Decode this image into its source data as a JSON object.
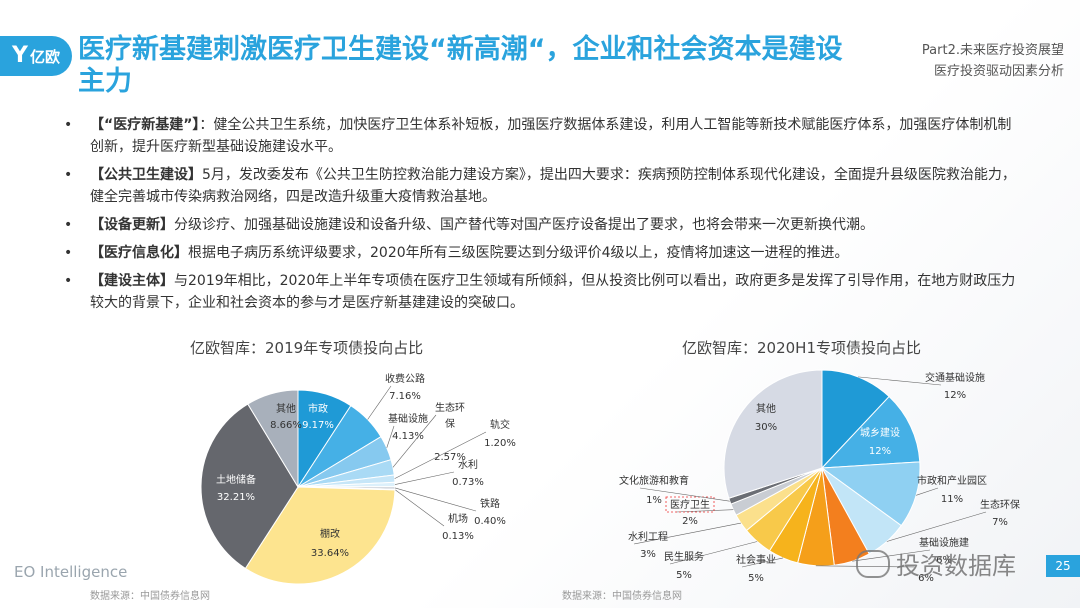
{
  "logo": {
    "text": "亿欧"
  },
  "title": "医疗新基建刺激医疗卫生建设“新高潮“，企业和社会资本是建设主力",
  "part": {
    "line1": "Part2.未来医疗投资展望",
    "line2": "医疗投资驱动因素分析"
  },
  "bullets": [
    {
      "head": "【“医疗新基建”】",
      "text": "：健全公共卫生系统，加快医疗卫生体系补短板，加强医疗数据体系建设，利用人工智能等新技术赋能医疗体系，加强医疗体制机制创新，提升医疗新型基础设施建设水平。"
    },
    {
      "head": "【公共卫生建设】",
      "text": "5月，发改委发布《公共卫生防控救治能力建设方案》，提出四大要求：疾病预防控制体系现代化建设，全面提升县级医院救治能力，健全完善城市传染病救治网络，四是改造升级重大疫情救治基地。"
    },
    {
      "head": "【设备更新】",
      "text": "分级诊疗、加强基础设施建设和设备升级、国产替代等对国产医疗设备提出了要求，也将会带来一次更新换代潮。"
    },
    {
      "head": "【医疗信息化】",
      "text": "根据电子病历系统评级要求，2020年所有三级医院要达到分级评价4级以上，疫情将加速这一进程的推进。"
    },
    {
      "head": "【建设主体】",
      "text": "与2019年相比，2020年上半年专项债在医疗卫生领域有所倾斜，但从投资比例可以看出，政府更多是发挥了引导作用，在地方财政压力较大的背景下，企业和社会资本的参与才是医疗新基建建设的突破口。"
    }
  ],
  "chart_data": [
    {
      "type": "pie",
      "title": "亿欧智库：2019年专项债投向占比",
      "slices": [
        {
          "label": "市政",
          "value": 9.17,
          "display": "9.17%",
          "color": "#1f9ad6"
        },
        {
          "label": "收费公路",
          "value": 7.16,
          "display": "7.16%",
          "color": "#45b0e6"
        },
        {
          "label": "基础设施",
          "value": 4.13,
          "display": "4.13%",
          "color": "#86c9ef"
        },
        {
          "label": "生态环保",
          "value": 2.57,
          "display": "2.57%",
          "color": "#a9daf5"
        },
        {
          "label": "轨交",
          "value": 1.2,
          "display": "1.20%",
          "color": "#c6e6f8"
        },
        {
          "label": "水利",
          "value": 0.73,
          "display": "0.73%",
          "color": "#dcf0fb"
        },
        {
          "label": "铁路",
          "value": 0.4,
          "display": "0.40%",
          "color": "#c8ced6"
        },
        {
          "label": "机场",
          "value": 0.13,
          "display": "0.13%",
          "color": "#e9d89a"
        },
        {
          "label": "棚改",
          "value": 33.64,
          "display": "33.64%",
          "color": "#fde48f"
        },
        {
          "label": "土地储备",
          "value": 32.21,
          "display": "32.21%",
          "color": "#65676d"
        },
        {
          "label": "其他",
          "value": 8.66,
          "display": "8.66%",
          "color": "#a8b0bb"
        }
      ]
    },
    {
      "type": "pie",
      "title": "亿欧智库：2020H1专项债投向占比",
      "slices": [
        {
          "label": "交通基础设施",
          "value": 12,
          "display": "12%",
          "color": "#1f9ad6"
        },
        {
          "label": "城乡建设",
          "value": 12,
          "display": "12%",
          "color": "#45b0e6"
        },
        {
          "label": "市政和产业园区",
          "value": 11,
          "display": "11%",
          "color": "#8fd0f2"
        },
        {
          "label": "生态环保",
          "value": 7,
          "display": "7%",
          "color": "#c2e5f7"
        },
        {
          "label": "基础设施建",
          "value": 6,
          "display": "6%",
          "color": "#f37f1e"
        },
        {
          "label": "",
          "value": 6,
          "display": "6%",
          "color": "#f59f1a"
        },
        {
          "label": "社会事业",
          "value": 5,
          "display": "5%",
          "color": "#f6b31c"
        },
        {
          "label": "民生服务",
          "value": 5,
          "display": "5%",
          "color": "#f8c94a"
        },
        {
          "label": "水利工程",
          "value": 3,
          "display": "3%",
          "color": "#fbe08c"
        },
        {
          "label": "医疗卫生",
          "value": 2,
          "display": "2%",
          "color": "#c9cdd3"
        },
        {
          "label": "文化旅游和教育",
          "value": 1,
          "display": "1%",
          "color": "#6b6e74"
        },
        {
          "label": "其他",
          "value": 30,
          "display": "30%",
          "color": "#d6dae4"
        }
      ]
    }
  ],
  "footer": {
    "brand": "EO Intelligence",
    "source1": "数据来源：中国债券信息网",
    "source2": "数据来源：中国债券信息网",
    "watermark": "投资数据库",
    "page": "25"
  }
}
